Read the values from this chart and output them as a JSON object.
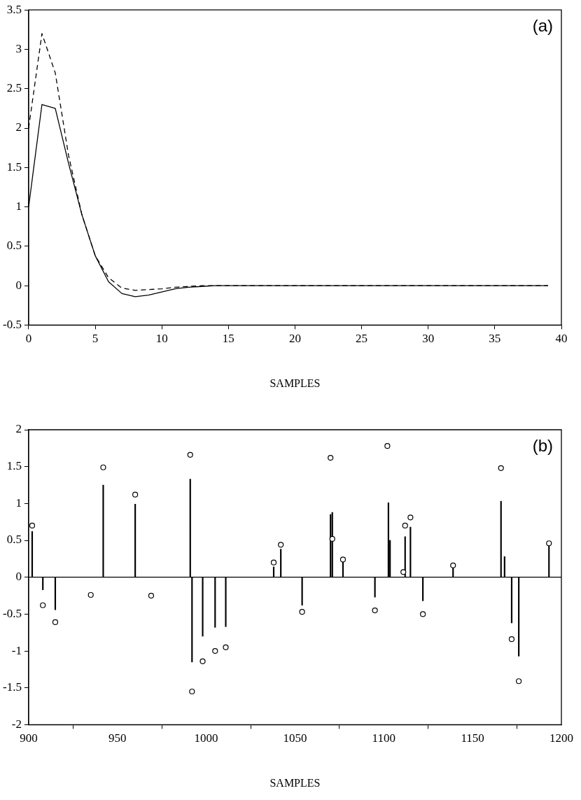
{
  "chart_data": [
    {
      "type": "line",
      "xlabel": "SAMPLES",
      "xlim": [
        0,
        40
      ],
      "ylim": [
        -0.5,
        3.5
      ],
      "xticks": [
        0,
        5,
        10,
        15,
        20,
        25,
        30,
        35,
        40
      ],
      "yticks": [
        -0.5,
        0,
        0.5,
        1,
        1.5,
        2,
        2.5,
        3,
        3.5
      ],
      "x": [
        0,
        1,
        2,
        3,
        4,
        5,
        6,
        7,
        8,
        9,
        10,
        11,
        12,
        13,
        14,
        15,
        16,
        17,
        18,
        19,
        20,
        21,
        22,
        23,
        24,
        25,
        26,
        27,
        28,
        29,
        30,
        31,
        32,
        33,
        34,
        35,
        36,
        37,
        38,
        39
      ],
      "annotations": [
        "(a)"
      ],
      "series": [
        {
          "color": "#000000",
          "line_style": "solid",
          "values": [
            1.0,
            2.3,
            2.25,
            1.55,
            0.9,
            0.38,
            0.05,
            -0.1,
            -0.14,
            -0.12,
            -0.08,
            -0.04,
            -0.02,
            -0.01,
            0,
            0,
            0,
            0,
            0,
            0,
            0,
            0,
            0,
            0,
            0,
            0,
            0,
            0,
            0,
            0,
            0,
            0,
            0,
            0,
            0,
            0,
            0,
            0,
            0,
            0
          ]
        },
        {
          "color": "#000000",
          "line_style": "dashed",
          "values": [
            2.0,
            3.2,
            2.7,
            1.65,
            0.9,
            0.38,
            0.1,
            -0.03,
            -0.06,
            -0.05,
            -0.04,
            -0.02,
            -0.01,
            0,
            0,
            0,
            0,
            0,
            0,
            0,
            0,
            0,
            0,
            0,
            0,
            0,
            0,
            0,
            0,
            0,
            0,
            0,
            0,
            0,
            0,
            0,
            0,
            0,
            0,
            0
          ]
        }
      ]
    },
    {
      "type": "bar",
      "xlabel": "SAMPLES",
      "xlim": [
        900,
        1200
      ],
      "ylim": [
        -2,
        2
      ],
      "xticks": [
        900,
        950,
        1000,
        1050,
        1100,
        1150,
        1200
      ],
      "yticks": [
        -2,
        -1.5,
        -1,
        -0.5,
        0,
        0.5,
        1,
        1.5,
        2
      ],
      "annotations": [
        "(b)"
      ],
      "ref_lines": [
        {
          "axis": "y",
          "value": 0,
          "color": "#000000"
        }
      ],
      "series": [
        {
          "type": "bar",
          "color": "#000000",
          "x": [
            902,
            908,
            915,
            942,
            960,
            991,
            992,
            998,
            1005,
            1011,
            1038,
            1042,
            1054,
            1070,
            1071,
            1077,
            1095,
            1102.6,
            1103.5,
            1112,
            1115,
            1122,
            1139,
            1166,
            1168,
            1172,
            1176,
            1193
          ],
          "values": [
            0.62,
            -0.17,
            -0.44,
            1.25,
            0.99,
            1.33,
            -1.15,
            -0.8,
            -0.68,
            -0.67,
            0.14,
            0.38,
            -0.38,
            0.85,
            0.88,
            0.24,
            -0.27,
            1.01,
            0.5,
            0.55,
            0.68,
            -0.32,
            0.16,
            1.03,
            0.28,
            -0.62,
            -1.07,
            0.45
          ]
        },
        {
          "type": "scatter",
          "color": "#000000",
          "marker": "circle",
          "x": [
            902,
            908,
            915,
            935,
            942,
            960,
            969,
            991,
            992,
            998,
            1005,
            1011,
            1038,
            1042,
            1054,
            1070,
            1071,
            1077,
            1095,
            1102,
            1111,
            1112,
            1115,
            1122,
            1139,
            1166,
            1172,
            1176,
            1193
          ],
          "values": [
            0.7,
            -0.38,
            -0.61,
            -0.24,
            1.49,
            1.12,
            -0.25,
            1.66,
            -1.55,
            -1.14,
            -1.0,
            -0.95,
            0.2,
            0.44,
            -0.47,
            1.62,
            0.52,
            0.24,
            -0.45,
            1.78,
            0.07,
            0.7,
            0.81,
            -0.5,
            0.16,
            1.48,
            -0.84,
            -1.41,
            0.46
          ]
        }
      ]
    }
  ]
}
